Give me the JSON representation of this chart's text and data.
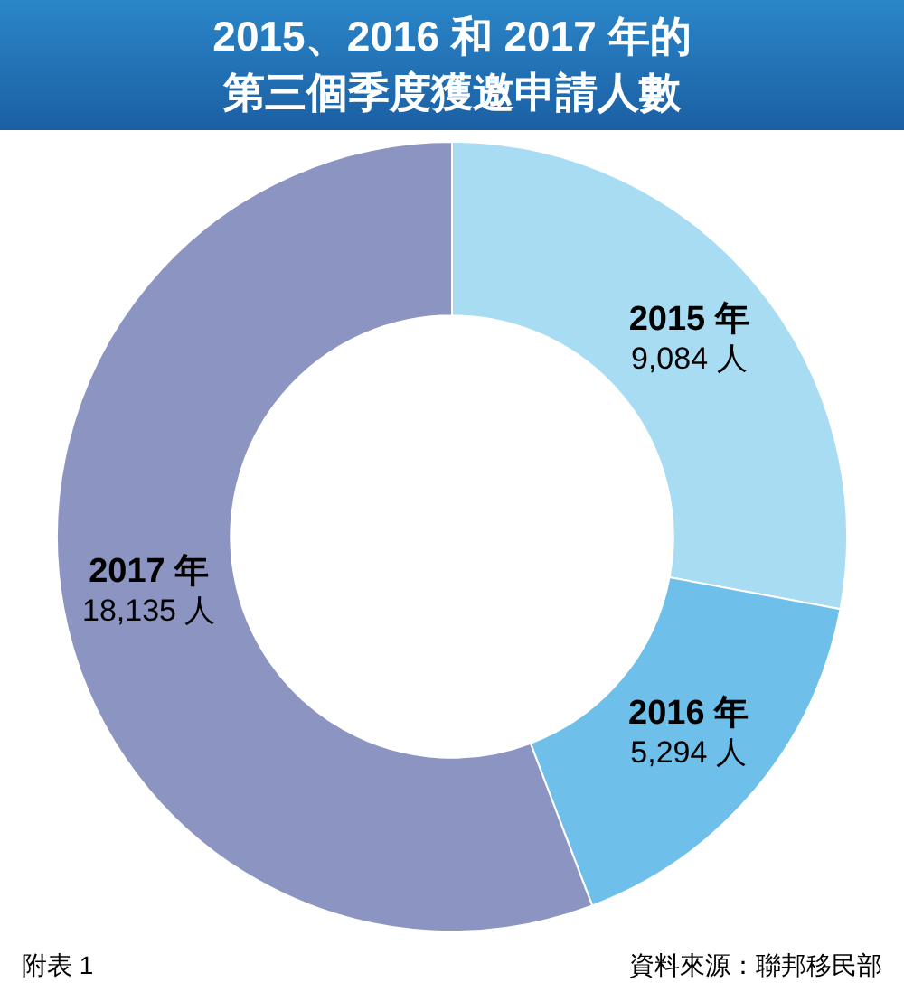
{
  "chart_data": {
    "type": "donut",
    "title": "2015、2016 和 2017 年的第三個季度獲邀申請人數",
    "categories": [
      "2015 年",
      "2016 年",
      "2017 年"
    ],
    "values": [
      9084,
      5294,
      18135
    ],
    "value_labels": [
      "9,084 人",
      "5,294 人",
      "18,135 人"
    ],
    "colors": [
      "#a8dcf3",
      "#6ec0eb",
      "#8c95c2"
    ],
    "legend": false,
    "annotations": [
      "附表 1",
      "資料來源：聯邦移民部"
    ]
  }
}
